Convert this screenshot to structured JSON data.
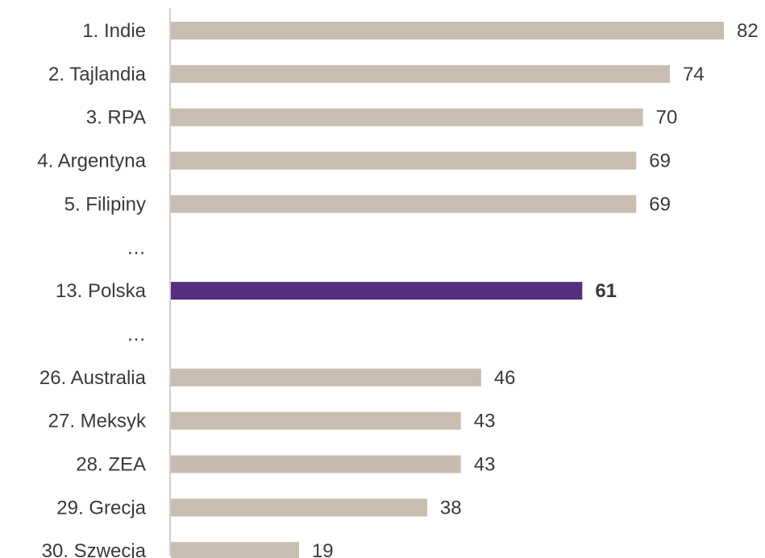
{
  "chart_data": {
    "type": "bar",
    "orientation": "horizontal",
    "categories": [
      "1. Indie",
      "2. Tajlandia",
      "3. RPA",
      "4. Argentyna",
      "5. Filipiny",
      "…",
      "13. Polska",
      "…",
      "26. Australia",
      "27. Meksyk",
      "28. ZEA",
      "29. Grecja",
      "30. Szwecja"
    ],
    "values": [
      82,
      74,
      70,
      69,
      69,
      null,
      61,
      null,
      46,
      43,
      43,
      38,
      19
    ],
    "highlight_index": 6,
    "xlim": [
      0,
      82
    ],
    "grid": false,
    "legend": "none",
    "title": "",
    "xlabel": "",
    "ylabel": ""
  },
  "colors": {
    "bar": "#c8bdb0",
    "highlight_bar": "#532f7e",
    "highlight_text": "#532f7e",
    "text": "#3a3a3a",
    "axis": "#cfcfcf"
  }
}
